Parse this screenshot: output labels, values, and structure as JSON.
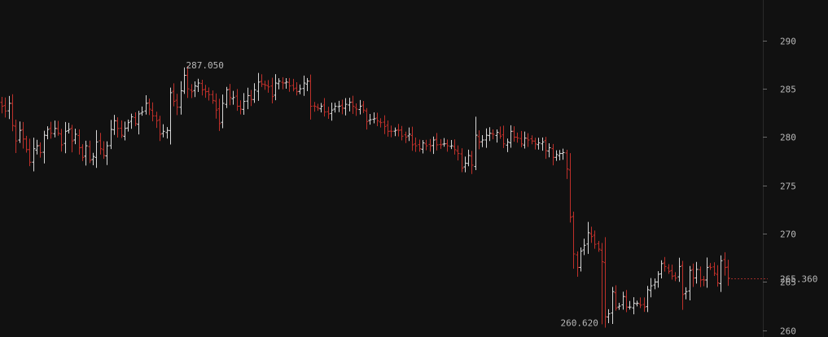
{
  "chart_data": {
    "type": "ohlc",
    "title": "",
    "xlabel": "",
    "ylabel": "",
    "ylim": [
      259.3,
      294.2
    ],
    "y_ticks": [
      "260",
      "265",
      "270",
      "275",
      "280",
      "285",
      "290"
    ],
    "grid": false,
    "last_price": "265.360",
    "last_price_value": 265.36,
    "max_marker": {
      "label": "287.050",
      "index": 52,
      "value": 287.05
    },
    "min_marker": {
      "label": "260.620",
      "index": 171,
      "value": 260.62
    },
    "colors": {
      "up": "#d8d8d8",
      "down": "#c0302a",
      "axis": "#2a2a2a",
      "text": "#b8b8b8",
      "last_price_line": "#9e2c27"
    },
    "closes": [
      283.2,
      282.7,
      283.5,
      281.2,
      279.6,
      280.7,
      279.8,
      278.7,
      277.4,
      278.8,
      279.1,
      278.4,
      280.2,
      280.8,
      280.4,
      280.9,
      280.4,
      279.2,
      280.6,
      280.8,
      279.6,
      280.3,
      278.9,
      277.9,
      279.1,
      277.6,
      278.0,
      279.5,
      278.8,
      278.1,
      279.1,
      280.8,
      281.7,
      280.9,
      280.2,
      280.9,
      281.5,
      282.1,
      281.4,
      282.4,
      282.6,
      283.5,
      282.9,
      282.2,
      281.7,
      280.3,
      280.6,
      280.7,
      284.6,
      283.7,
      283.1,
      284.8,
      286.4,
      285.0,
      284.7,
      285.3,
      285.6,
      284.9,
      284.7,
      284.4,
      283.8,
      282.8,
      281.4,
      283.5,
      284.9,
      284.1,
      284.1,
      283.2,
      282.9,
      283.7,
      284.3,
      283.9,
      284.9,
      285.7,
      285.5,
      285.4,
      285.2,
      284.2,
      285.6,
      285.8,
      285.6,
      285.7,
      285.3,
      285.0,
      284.7,
      285.0,
      285.6,
      285.8,
      283.2,
      283.2,
      283.0,
      283.2,
      282.6,
      282.4,
      282.8,
      283.2,
      283.2,
      283.0,
      283.4,
      283.6,
      283.2,
      282.9,
      283.2,
      282.8,
      281.6,
      281.8,
      281.9,
      281.7,
      281.5,
      281.1,
      280.6,
      280.6,
      280.7,
      280.7,
      280.1,
      280.0,
      280.3,
      279.2,
      279.1,
      278.8,
      279.4,
      279.1,
      279.1,
      279.7,
      279.2,
      279.2,
      279.3,
      279.1,
      279.1,
      278.7,
      278.3,
      276.8,
      277.3,
      278.1,
      277.1,
      280.2,
      279.5,
      279.7,
      280.2,
      280.4,
      280.3,
      280.5,
      280.1,
      279.3,
      279.5,
      280.6,
      280.0,
      279.9,
      279.3,
      279.9,
      279.7,
      279.6,
      279.3,
      279.4,
      279.5,
      278.6,
      278.9,
      277.9,
      278.2,
      278.3,
      278.4,
      276.7,
      271.7,
      267.9,
      266.5,
      268.2,
      268.8,
      270.1,
      269.7,
      268.9,
      268.4,
      267.1,
      261.4,
      261.7,
      264.0,
      262.3,
      262.5,
      263.5,
      262.4,
      262.4,
      262.8,
      262.8,
      262.6,
      262.4,
      264.2,
      264.6,
      265.0,
      265.8,
      266.9,
      266.6,
      266.1,
      265.6,
      265.4,
      266.6,
      263.7,
      264.0,
      266.2,
      265.4,
      266.3,
      265.2,
      265.2,
      266.5,
      266.5,
      265.9,
      264.9,
      267.2,
      266.5,
      265.4
    ]
  }
}
